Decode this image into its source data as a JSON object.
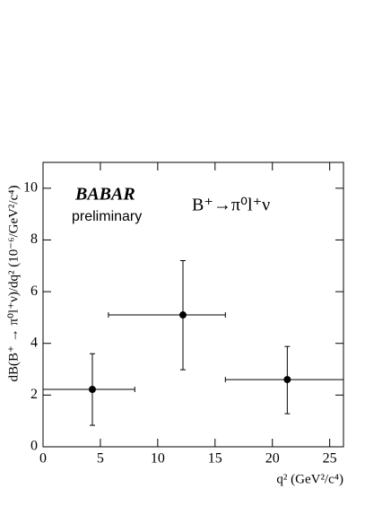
{
  "chart_data": {
    "type": "errorbar",
    "brand": "BABAR",
    "subtitle": "preliminary",
    "annotation": "B⁺→π⁰l⁺ν",
    "x_label": "q² (GeV²/c⁴)",
    "y_label": "dB(B⁺ → π⁰l⁺ν)/dq² (10⁻⁶/GeV²/c⁴)",
    "x": [
      4.3,
      12.2,
      21.3
    ],
    "values": [
      2.22,
      5.1,
      2.6
    ],
    "x_low": [
      0,
      5.7,
      15.9
    ],
    "x_high": [
      8,
      15.9,
      26.2
    ],
    "y_low": [
      0.83,
      2.98,
      1.28
    ],
    "y_high": [
      3.6,
      7.2,
      3.88
    ],
    "color": "#000000",
    "xlim": [
      0,
      26.2
    ],
    "ylim": [
      0,
      11
    ],
    "xticks": [
      0,
      5,
      10,
      15,
      20,
      25
    ],
    "yticks": [
      0,
      2,
      4,
      6,
      8,
      10
    ]
  }
}
